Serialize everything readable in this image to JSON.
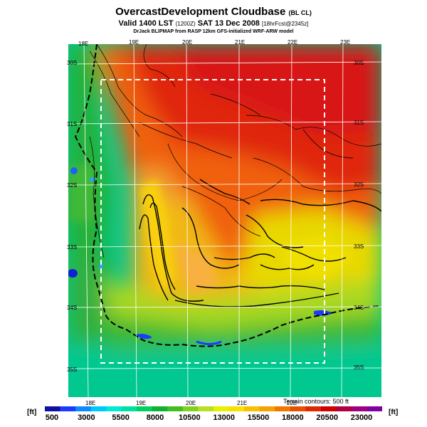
{
  "header": {
    "title": "OvercastDevelopment Cloudbase",
    "title_tag": "(BL CL)",
    "valid_prefix": "Valid 1400 LST",
    "valid_utc": "(1200Z)",
    "valid_date": "SAT 13 Dec 2008",
    "forecast_tag": "[18hrFcst@2345z]",
    "credit": "DrJack BLIPMAP from RASP 12km GFS-initialized WRF-ARW model"
  },
  "map": {
    "lon_labels_top": [
      "18E",
      "19E",
      "20E",
      "21E",
      "22E",
      "23E"
    ],
    "lon_labels_bottom": [
      "18E",
      "19E",
      "20E",
      "21E",
      "22E"
    ],
    "lat_labels_left": [
      "30S",
      "31S",
      "32S",
      "33S",
      "34S",
      "35S"
    ],
    "lat_labels_right": [
      "30S",
      "31S",
      "32S",
      "33S",
      "34S",
      "35S"
    ],
    "terrain_note": "Terrain contours: 500 ft"
  },
  "colorbar": {
    "unit_left": "[ft]",
    "unit_right": "[ft]",
    "tick_labels": [
      "500",
      "3000",
      "5500",
      "8000",
      "10500",
      "13000",
      "15500",
      "18000",
      "20500",
      "23000"
    ],
    "colors": [
      "#1010a0",
      "#1a3cff",
      "#0a8cff",
      "#00c8ff",
      "#00e8d8",
      "#00e0a0",
      "#00d060",
      "#10b030",
      "#40c020",
      "#80d020",
      "#b8e020",
      "#e8f000",
      "#f8e000",
      "#f8c000",
      "#f8a000",
      "#f07800",
      "#e85000",
      "#e02800",
      "#d00000",
      "#b00040",
      "#a00080",
      "#8000a0"
    ]
  }
}
